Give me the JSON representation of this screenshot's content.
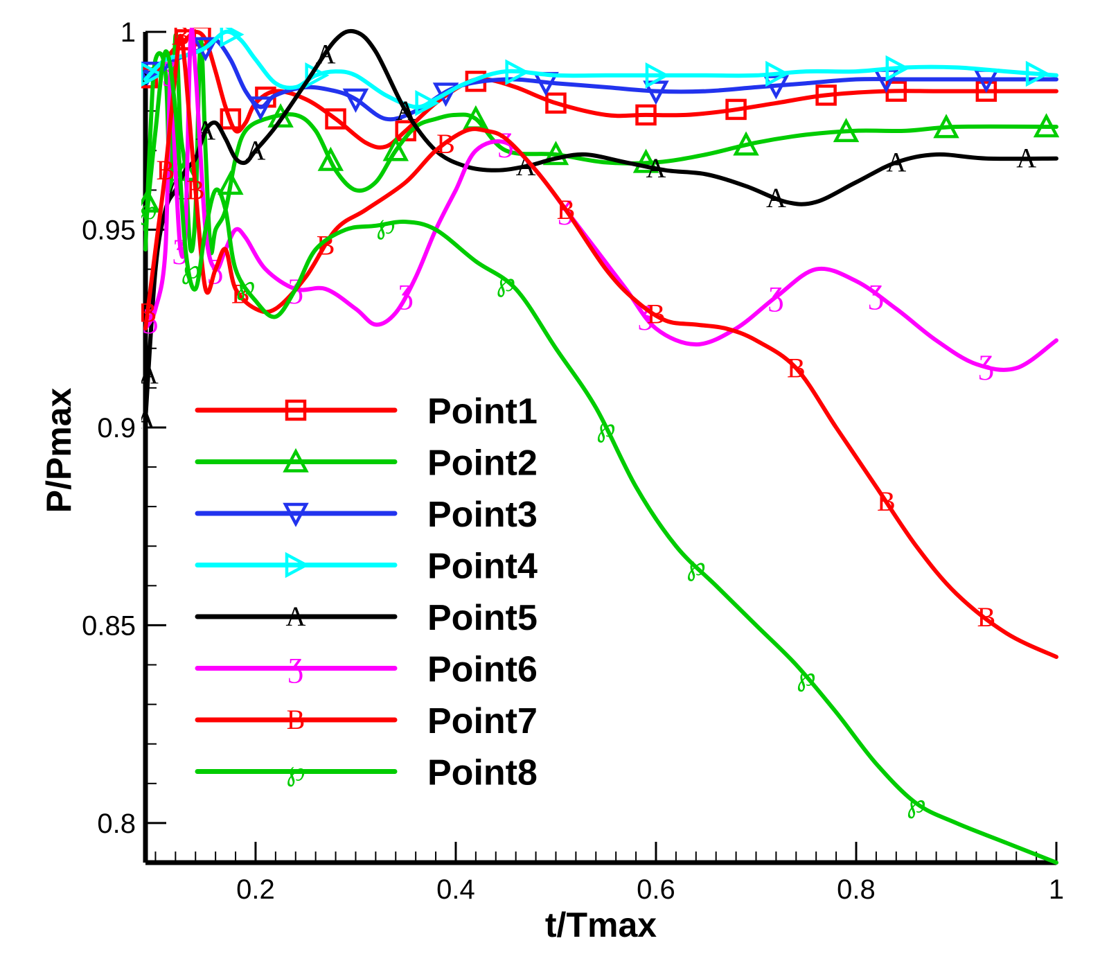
{
  "chart_data": {
    "type": "line",
    "title": "",
    "xlabel": "t/Tmax",
    "ylabel": "P/Pmax",
    "xlim": [
      0.09,
      1.0
    ],
    "ylim": [
      0.79,
      1.0
    ],
    "xticks": [
      {
        "value": 0.2,
        "label": "0.2"
      },
      {
        "value": 0.4,
        "label": "0.4"
      },
      {
        "value": 0.6,
        "label": "0.6"
      },
      {
        "value": 0.8,
        "label": "0.8"
      },
      {
        "value": 1.0,
        "label": "1"
      }
    ],
    "yticks": [
      {
        "value": 0.8,
        "label": "0.8"
      },
      {
        "value": 0.85,
        "label": "0.85"
      },
      {
        "value": 0.9,
        "label": "0.9"
      },
      {
        "value": 0.95,
        "label": "0.95"
      },
      {
        "value": 1.0,
        "label": "1"
      }
    ],
    "grid": false,
    "legend_position": "center-left",
    "series": [
      {
        "name": "Point1",
        "color": "#ff0000",
        "marker": "square",
        "x": [
          0.09,
          0.1,
          0.11,
          0.12,
          0.13,
          0.14,
          0.15,
          0.16,
          0.17,
          0.18,
          0.19,
          0.2,
          0.22,
          0.25,
          0.28,
          0.31,
          0.33,
          0.35,
          0.38,
          0.41,
          0.43,
          0.46,
          0.5,
          0.55,
          0.59,
          0.63,
          0.67,
          0.72,
          0.77,
          0.83,
          0.88,
          0.93,
          1.0
        ],
        "y": [
          0.988,
          0.99,
          0.993,
          0.996,
          0.998,
          1.0,
          0.998,
          0.99,
          0.981,
          0.975,
          0.977,
          0.982,
          0.985,
          0.983,
          0.978,
          0.972,
          0.971,
          0.975,
          0.982,
          0.987,
          0.988,
          0.986,
          0.982,
          0.979,
          0.979,
          0.979,
          0.98,
          0.982,
          0.984,
          0.985,
          0.985,
          0.985,
          0.985
        ],
        "marker_x": [
          0.092,
          0.13,
          0.145,
          0.175,
          0.21,
          0.28,
          0.35,
          0.42,
          0.5,
          0.59,
          0.68,
          0.77,
          0.84,
          0.93
        ]
      },
      {
        "name": "Point2",
        "color": "#00cc00",
        "marker": "triangle-up",
        "x": [
          0.09,
          0.095,
          0.1,
          0.11,
          0.115,
          0.12,
          0.125,
          0.13,
          0.135,
          0.14,
          0.145,
          0.15,
          0.155,
          0.16,
          0.17,
          0.18,
          0.19,
          0.21,
          0.24,
          0.26,
          0.28,
          0.3,
          0.32,
          0.34,
          0.36,
          0.38,
          0.4,
          0.42,
          0.45,
          0.5,
          0.55,
          0.6,
          0.65,
          0.7,
          0.75,
          0.8,
          0.85,
          0.9,
          1.0
        ],
        "y": [
          0.945,
          0.975,
          0.993,
          0.99,
          0.96,
          0.999,
          0.975,
          0.965,
          0.945,
          0.955,
          0.998,
          0.97,
          0.945,
          0.95,
          0.955,
          0.968,
          0.975,
          0.978,
          0.979,
          0.975,
          0.965,
          0.96,
          0.962,
          0.97,
          0.976,
          0.978,
          0.979,
          0.978,
          0.97,
          0.969,
          0.967,
          0.967,
          0.969,
          0.972,
          0.974,
          0.975,
          0.975,
          0.976,
          0.976
        ],
        "marker_x": [
          0.092,
          0.13,
          0.175,
          0.225,
          0.275,
          0.34,
          0.42,
          0.5,
          0.59,
          0.69,
          0.79,
          0.89,
          0.99
        ]
      },
      {
        "name": "Point3",
        "color": "#2233ee",
        "marker": "triangle-down",
        "x": [
          0.09,
          0.1,
          0.11,
          0.12,
          0.13,
          0.14,
          0.15,
          0.16,
          0.175,
          0.19,
          0.205,
          0.22,
          0.25,
          0.28,
          0.3,
          0.33,
          0.36,
          0.4,
          0.45,
          0.5,
          0.55,
          0.6,
          0.65,
          0.7,
          0.75,
          0.8,
          0.85,
          0.9,
          0.95,
          1.0
        ],
        "y": [
          0.99,
          0.989,
          0.991,
          0.993,
          0.994,
          0.995,
          0.996,
          0.998,
          0.993,
          0.985,
          0.981,
          0.984,
          0.986,
          0.985,
          0.983,
          0.978,
          0.98,
          0.986,
          0.988,
          0.987,
          0.986,
          0.985,
          0.985,
          0.986,
          0.987,
          0.988,
          0.988,
          0.988,
          0.988,
          0.988
        ],
        "marker_x": [
          0.092,
          0.15,
          0.205,
          0.3,
          0.39,
          0.49,
          0.6,
          0.72,
          0.83,
          0.93
        ]
      },
      {
        "name": "Point4",
        "color": "#00ffff",
        "marker": "triangle-right",
        "x": [
          0.09,
          0.11,
          0.13,
          0.15,
          0.17,
          0.185,
          0.2,
          0.22,
          0.24,
          0.26,
          0.28,
          0.3,
          0.33,
          0.36,
          0.38,
          0.41,
          0.45,
          0.5,
          0.55,
          0.6,
          0.65,
          0.7,
          0.75,
          0.8,
          0.85,
          0.9,
          0.95,
          1.0
        ],
        "y": [
          0.988,
          0.993,
          0.994,
          0.996,
          1.0,
          0.998,
          0.993,
          0.987,
          0.986,
          0.989,
          0.99,
          0.989,
          0.984,
          0.981,
          0.983,
          0.987,
          0.99,
          0.989,
          0.989,
          0.989,
          0.989,
          0.989,
          0.99,
          0.99,
          0.991,
          0.991,
          0.99,
          0.989
        ],
        "marker_x": [
          0.095,
          0.175,
          0.26,
          0.37,
          0.46,
          0.6,
          0.72,
          0.84,
          0.98
        ]
      },
      {
        "name": "Point5",
        "color": "#000000",
        "marker": "letter-A",
        "x": [
          0.09,
          0.1,
          0.11,
          0.12,
          0.13,
          0.14,
          0.15,
          0.16,
          0.17,
          0.18,
          0.19,
          0.2,
          0.22,
          0.25,
          0.28,
          0.3,
          0.32,
          0.35,
          0.38,
          0.41,
          0.44,
          0.47,
          0.5,
          0.53,
          0.57,
          0.61,
          0.65,
          0.69,
          0.73,
          0.76,
          0.8,
          0.84,
          0.88,
          0.93,
          1.0
        ],
        "y": [
          0.902,
          0.94,
          0.955,
          0.96,
          0.965,
          0.968,
          0.975,
          0.977,
          0.973,
          0.968,
          0.967,
          0.97,
          0.976,
          0.987,
          0.998,
          1.0,
          0.995,
          0.98,
          0.97,
          0.966,
          0.965,
          0.966,
          0.968,
          0.969,
          0.967,
          0.965,
          0.964,
          0.961,
          0.957,
          0.957,
          0.962,
          0.967,
          0.969,
          0.968,
          0.968
        ],
        "marker_x": [
          0.09,
          0.093,
          0.12,
          0.15,
          0.2,
          0.27,
          0.35,
          0.47,
          0.6,
          0.72,
          0.84,
          0.97
        ]
      },
      {
        "name": "Point6",
        "color": "#ff00ff",
        "marker": "letter-S",
        "x": [
          0.09,
          0.1,
          0.11,
          0.115,
          0.12,
          0.125,
          0.13,
          0.135,
          0.14,
          0.15,
          0.16,
          0.17,
          0.18,
          0.19,
          0.21,
          0.24,
          0.27,
          0.3,
          0.32,
          0.34,
          0.36,
          0.38,
          0.4,
          0.42,
          0.45,
          0.48,
          0.51,
          0.54,
          0.57,
          0.6,
          0.64,
          0.68,
          0.72,
          0.76,
          0.8,
          0.84,
          0.88,
          0.92,
          0.96,
          1.0
        ],
        "y": [
          0.925,
          0.93,
          0.945,
          0.99,
          0.965,
          0.945,
          0.95,
          0.998,
          0.99,
          0.95,
          0.94,
          0.945,
          0.95,
          0.948,
          0.94,
          0.935,
          0.935,
          0.93,
          0.926,
          0.929,
          0.938,
          0.95,
          0.96,
          0.97,
          0.972,
          0.965,
          0.955,
          0.945,
          0.935,
          0.925,
          0.921,
          0.925,
          0.933,
          0.94,
          0.937,
          0.93,
          0.922,
          0.916,
          0.915,
          0.922
        ],
        "marker_x": [
          0.095,
          0.115,
          0.125,
          0.16,
          0.24,
          0.35,
          0.45,
          0.51,
          0.59,
          0.72,
          0.82,
          0.93
        ]
      },
      {
        "name": "Point7",
        "color": "#ff0000",
        "marker": "letter-B",
        "x": [
          0.09,
          0.1,
          0.11,
          0.12,
          0.125,
          0.13,
          0.14,
          0.15,
          0.16,
          0.17,
          0.18,
          0.2,
          0.22,
          0.25,
          0.28,
          0.31,
          0.35,
          0.38,
          0.41,
          0.43,
          0.45,
          0.48,
          0.51,
          0.55,
          0.58,
          0.61,
          0.64,
          0.67,
          0.7,
          0.74,
          0.78,
          0.82,
          0.86,
          0.9,
          0.95,
          1.0
        ],
        "y": [
          0.925,
          0.945,
          0.965,
          0.99,
          0.999,
          0.99,
          0.96,
          0.935,
          0.94,
          0.945,
          0.935,
          0.93,
          0.93,
          0.938,
          0.95,
          0.955,
          0.962,
          0.97,
          0.975,
          0.975,
          0.973,
          0.965,
          0.955,
          0.94,
          0.932,
          0.927,
          0.926,
          0.925,
          0.922,
          0.915,
          0.9,
          0.885,
          0.87,
          0.858,
          0.848,
          0.842
        ],
        "marker_x": [
          0.092,
          0.11,
          0.125,
          0.14,
          0.185,
          0.27,
          0.39,
          0.51,
          0.6,
          0.74,
          0.83,
          0.93
        ]
      },
      {
        "name": "Point8",
        "color": "#00cc00",
        "marker": "letter-script",
        "x": [
          0.09,
          0.1,
          0.11,
          0.12,
          0.13,
          0.14,
          0.15,
          0.16,
          0.17,
          0.18,
          0.2,
          0.22,
          0.24,
          0.26,
          0.29,
          0.32,
          0.35,
          0.38,
          0.42,
          0.46,
          0.5,
          0.54,
          0.58,
          0.62,
          0.66,
          0.7,
          0.74,
          0.78,
          0.82,
          0.86,
          0.9,
          0.95,
          1.0
        ],
        "y": [
          0.95,
          0.975,
          0.995,
          0.98,
          0.945,
          0.935,
          0.95,
          0.96,
          0.955,
          0.94,
          0.932,
          0.928,
          0.935,
          0.945,
          0.95,
          0.951,
          0.952,
          0.95,
          0.942,
          0.935,
          0.92,
          0.905,
          0.885,
          0.87,
          0.86,
          0.85,
          0.84,
          0.828,
          0.815,
          0.805,
          0.8,
          0.795,
          0.79
        ],
        "marker_x": [
          0.092,
          0.135,
          0.19,
          0.33,
          0.45,
          0.55,
          0.64,
          0.75,
          0.86
        ]
      }
    ]
  }
}
